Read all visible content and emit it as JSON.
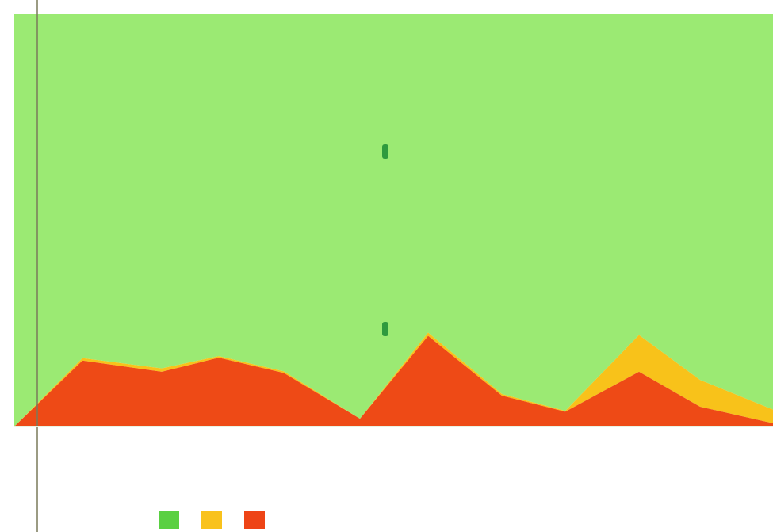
{
  "chart_data": {
    "type": "area",
    "stacked": true,
    "title": "",
    "xlabel": "",
    "ylabel": "",
    "x": [
      0,
      1,
      2,
      3,
      4,
      5,
      6,
      7,
      8,
      9,
      10,
      11,
      12
    ],
    "ylim": [
      0,
      100
    ],
    "grid": false,
    "legend_position": "bottom",
    "series": [
      {
        "name": "",
        "color": "#ee4a16",
        "values": [
          0,
          16.0,
          13.3,
          16.7,
          13.0,
          1.9,
          22.0,
          7.5,
          3.6,
          13.3,
          4.8,
          0.8,
          null
        ]
      },
      {
        "name": "",
        "color": "#f8c21a",
        "values": [
          0,
          0.6,
          0.8,
          0.4,
          0.4,
          0,
          0.8,
          0.4,
          0.2,
          8.9,
          6.5,
          3.3,
          null
        ]
      },
      {
        "name": "",
        "color": "#9bea73",
        "values": [
          100,
          83.4,
          85.9,
          82.9,
          86.6,
          98.1,
          77.2,
          92.1,
          96.2,
          77.8,
          88.7,
          95.9,
          null
        ]
      }
    ],
    "x_positions_note_removed": true
  },
  "legend": {
    "items": [
      {
        "swatch_color": "#5ad042",
        "label": ""
      },
      {
        "swatch_color": "#f9c21c",
        "label": ""
      },
      {
        "swatch_color": "#ee4416",
        "label": ""
      }
    ]
  }
}
